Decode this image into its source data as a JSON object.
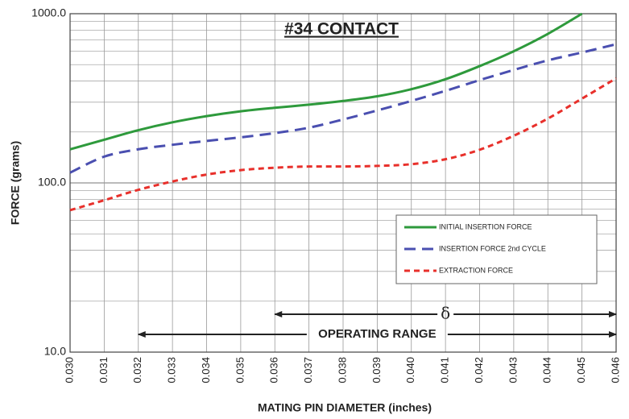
{
  "chart_data": {
    "type": "line",
    "title": "#34 CONTACT",
    "xlabel": "MATING PIN DIAMETER (inches)",
    "ylabel": "FORCE (grams)",
    "yscale": "log",
    "grid": true,
    "legend": "lower right",
    "x": [
      0.03,
      0.031,
      0.032,
      0.033,
      0.034,
      0.035,
      0.036,
      0.037,
      0.038,
      0.039,
      0.04,
      0.041,
      0.042,
      0.043,
      0.044,
      0.045,
      0.046
    ],
    "series": [
      {
        "name": "INITIAL INSERTION FORCE",
        "color": "#2e9a3c",
        "dash": "solid",
        "values": [
          158,
          180,
          205,
          228,
          248,
          265,
          278,
          290,
          305,
          325,
          358,
          410,
          490,
          600,
          760,
          1000,
          null
        ]
      },
      {
        "name": "INSERTION FORCE 2nd CYCLE",
        "color": "#4a4fb0",
        "dash": "dashed",
        "values": [
          115,
          143,
          158,
          168,
          177,
          186,
          197,
          212,
          237,
          268,
          305,
          350,
          405,
          465,
          530,
          590,
          660
        ]
      },
      {
        "name": "EXTRACTION FORCE",
        "color": "#e8302b",
        "dash": "dotted",
        "values": [
          69,
          79,
          91,
          102,
          112,
          119,
          123,
          125,
          125,
          126,
          129,
          138,
          157,
          190,
          240,
          315,
          415
        ]
      }
    ],
    "xlim": [
      0.03,
      0.046
    ],
    "xticks": [
      {
        "value": 0.03,
        "label": "0.030"
      },
      {
        "value": 0.031,
        "label": "0.031"
      },
      {
        "value": 0.032,
        "label": "0.032"
      },
      {
        "value": 0.033,
        "label": "0.033"
      },
      {
        "value": 0.034,
        "label": "0.034"
      },
      {
        "value": 0.035,
        "label": "0.035"
      },
      {
        "value": 0.036,
        "label": "0.036"
      },
      {
        "value": 0.037,
        "label": "0.037"
      },
      {
        "value": 0.038,
        "label": "0.038"
      },
      {
        "value": 0.039,
        "label": "0.039"
      },
      {
        "value": 0.04,
        "label": "0.040"
      },
      {
        "value": 0.041,
        "label": "0.041"
      },
      {
        "value": 0.042,
        "label": "0.042"
      },
      {
        "value": 0.043,
        "label": "0.043"
      },
      {
        "value": 0.044,
        "label": "0.044"
      },
      {
        "value": 0.045,
        "label": "0.045"
      },
      {
        "value": 0.046,
        "label": "0.046"
      }
    ],
    "ylim": [
      10,
      1000
    ],
    "yticks": [
      {
        "value": 10,
        "label": "10.0"
      },
      {
        "value": 100,
        "label": "100.0"
      },
      {
        "value": 1000,
        "label": "1000.0"
      }
    ],
    "yminor_ticks": [
      20,
      30,
      40,
      50,
      60,
      70,
      80,
      90,
      200,
      300,
      400,
      500,
      600,
      700,
      800,
      900
    ],
    "annotations": [
      {
        "text": "δ",
        "x": [
          0.036,
          0.046
        ]
      },
      {
        "text": "OPERATING RANGE",
        "x": [
          0.032,
          0.046
        ]
      }
    ]
  }
}
